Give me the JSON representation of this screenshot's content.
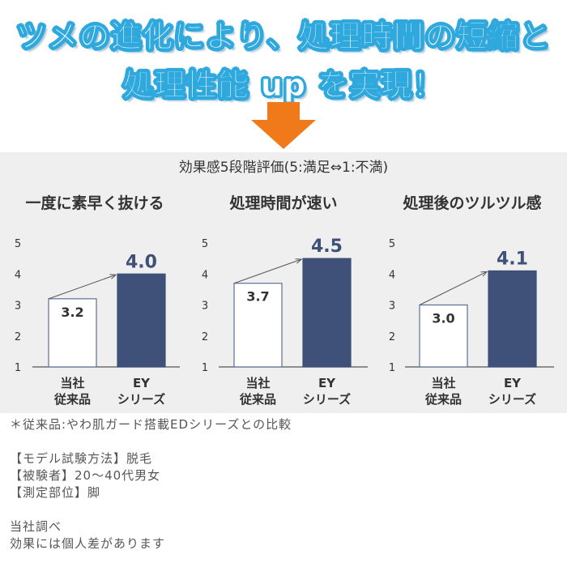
{
  "headline": {
    "line1": "ツメの進化により、処理時間の短縮と",
    "line2": "処理性能 up を実現！"
  },
  "colors": {
    "headline_stroke": "#2fa8dd",
    "arrow": "#f07a1a",
    "ey_bar": "#3f5179",
    "ours_bar_fill": "#ffffff",
    "ours_bar_stroke": "#5a6f96",
    "panel_bg": "#efefef"
  },
  "panel": {
    "caption": "効果感5段階評価(5:満足⇔1:不満)"
  },
  "chart_data": [
    {
      "type": "bar",
      "title": "一度に素早く抜ける",
      "categories": [
        "当社\n従来品",
        "EY\nシリーズ"
      ],
      "values": [
        3.2,
        4.0
      ],
      "value_labels": [
        "3.2",
        "4.0"
      ],
      "ylim": [
        1,
        5
      ],
      "yticks": [
        "1",
        "2",
        "3",
        "4",
        "5"
      ],
      "grid": false,
      "trend_arrow": true
    },
    {
      "type": "bar",
      "title": "処理時間が速い",
      "categories": [
        "当社\n従来品",
        "EY\nシリーズ"
      ],
      "values": [
        3.7,
        4.5
      ],
      "value_labels": [
        "3.7",
        "4.5"
      ],
      "ylim": [
        1,
        5
      ],
      "yticks": [
        "1",
        "2",
        "3",
        "4",
        "5"
      ],
      "grid": false,
      "trend_arrow": true
    },
    {
      "type": "bar",
      "title": "処理後のツルツル感",
      "categories": [
        "当社\n従来品",
        "EY\nシリーズ"
      ],
      "values": [
        3.0,
        4.1
      ],
      "value_labels": [
        "3.0",
        "4.1"
      ],
      "ylim": [
        1,
        5
      ],
      "yticks": [
        "1",
        "2",
        "3",
        "4",
        "5"
      ],
      "grid": false,
      "trend_arrow": true
    }
  ],
  "notes": {
    "line1": "＊従来品:やわ肌ガード搭載EDシリーズとの比較",
    "line2": "",
    "line3": "【モデル試験方法】脱毛",
    "line4": "【被験者】20〜40代男女",
    "line5": "【測定部位】脚",
    "line6": "",
    "line7": "当社調べ",
    "line8": "効果には個人差があります"
  }
}
